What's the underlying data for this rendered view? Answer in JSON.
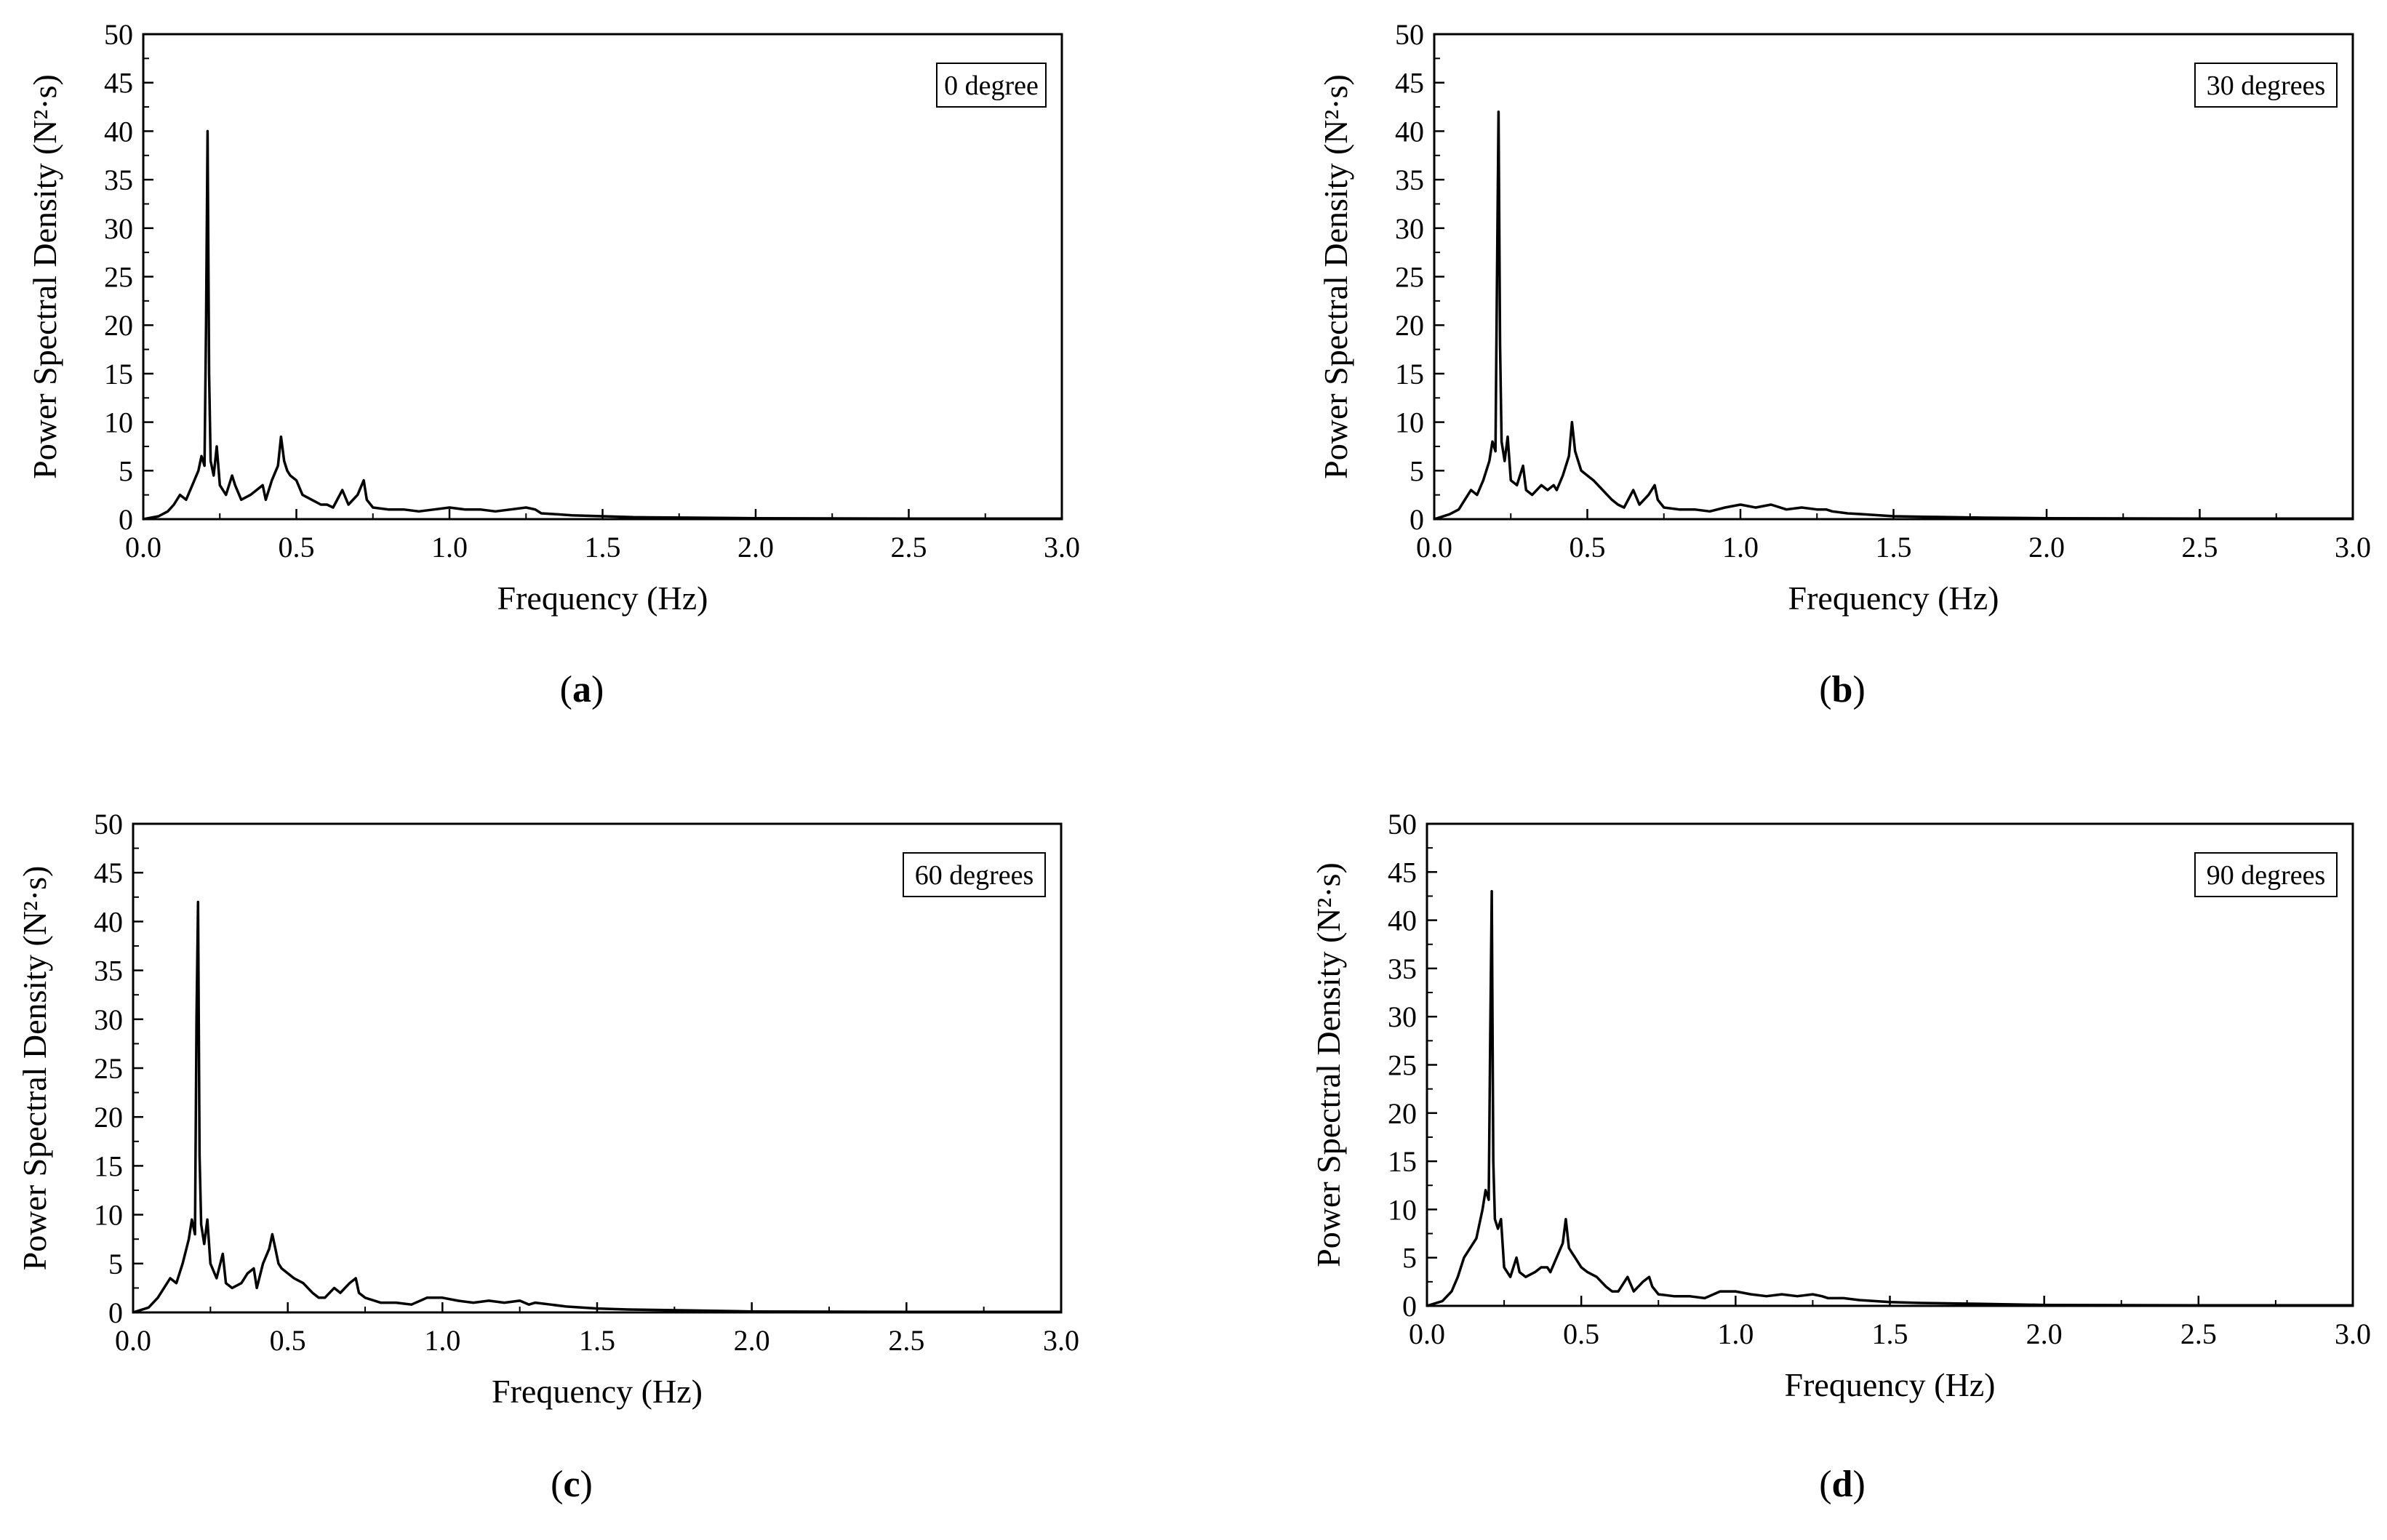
{
  "chart_data": [
    {
      "type": "line",
      "panel_label": "a",
      "legend": "0 degree",
      "xlabel": "Frequency (Hz)",
      "ylabel": "Power Spectral Density (N²·s)",
      "xlim": [
        0,
        3.0
      ],
      "ylim": [
        0,
        50
      ],
      "xticks": [
        "0.0",
        "0.5",
        "1.0",
        "1.5",
        "2.0",
        "2.5",
        "3.0"
      ],
      "yticks": [
        "0",
        "5",
        "10",
        "15",
        "20",
        "25",
        "30",
        "35",
        "40",
        "45",
        "50"
      ],
      "series": [
        {
          "x": [
            0,
            0.05,
            0.08,
            0.1,
            0.12,
            0.14,
            0.16,
            0.18,
            0.19,
            0.2,
            0.205,
            0.21,
            0.215,
            0.22,
            0.23,
            0.24,
            0.25,
            0.27,
            0.29,
            0.3,
            0.32,
            0.35,
            0.37,
            0.39,
            0.4,
            0.42,
            0.44,
            0.45,
            0.46,
            0.47,
            0.48,
            0.5,
            0.52,
            0.55,
            0.58,
            0.6,
            0.62,
            0.65,
            0.67,
            0.7,
            0.72,
            0.73,
            0.75,
            0.8,
            0.85,
            0.9,
            0.95,
            1.0,
            1.05,
            1.1,
            1.15,
            1.2,
            1.25,
            1.28,
            1.3,
            1.35,
            1.4,
            1.5,
            1.6,
            1.8,
            2.0,
            2.5,
            3.0
          ],
          "y": [
            0,
            0.3,
            0.8,
            1.5,
            2.5,
            2.0,
            3.5,
            5.0,
            6.5,
            5.5,
            20,
            40,
            15,
            6,
            4.5,
            7.5,
            3.5,
            2.5,
            4.5,
            3.5,
            2.0,
            2.5,
            3.0,
            3.5,
            2.0,
            4.0,
            5.5,
            8.5,
            6.0,
            5.0,
            4.5,
            4.0,
            2.5,
            2.0,
            1.5,
            1.5,
            1.2,
            3.0,
            1.5,
            2.5,
            4.0,
            2.0,
            1.2,
            1.0,
            1.0,
            0.8,
            1.0,
            1.2,
            1.0,
            1.0,
            0.8,
            1.0,
            1.2,
            1.0,
            0.6,
            0.5,
            0.4,
            0.3,
            0.2,
            0.15,
            0.1,
            0.05,
            0.05
          ]
        }
      ]
    },
    {
      "type": "line",
      "panel_label": "b",
      "legend": "30 degrees",
      "xlabel": "Frequency (Hz)",
      "ylabel": "Power Spectral Density (N²·s)",
      "xlim": [
        0,
        3.0
      ],
      "ylim": [
        0,
        50
      ],
      "xticks": [
        "0.0",
        "0.5",
        "1.0",
        "1.5",
        "2.0",
        "2.5",
        "3.0"
      ],
      "yticks": [
        "0",
        "5",
        "10",
        "15",
        "20",
        "25",
        "30",
        "35",
        "40",
        "45",
        "50"
      ],
      "series": [
        {
          "x": [
            0,
            0.05,
            0.08,
            0.1,
            0.12,
            0.14,
            0.16,
            0.18,
            0.19,
            0.2,
            0.205,
            0.21,
            0.215,
            0.22,
            0.23,
            0.24,
            0.25,
            0.27,
            0.29,
            0.3,
            0.32,
            0.35,
            0.37,
            0.39,
            0.4,
            0.42,
            0.44,
            0.45,
            0.46,
            0.47,
            0.48,
            0.5,
            0.52,
            0.55,
            0.58,
            0.6,
            0.62,
            0.65,
            0.67,
            0.7,
            0.72,
            0.73,
            0.75,
            0.8,
            0.85,
            0.9,
            0.95,
            1.0,
            1.05,
            1.1,
            1.15,
            1.2,
            1.25,
            1.28,
            1.3,
            1.35,
            1.4,
            1.5,
            1.6,
            1.8,
            2.0,
            2.5,
            3.0
          ],
          "y": [
            0,
            0.5,
            1.0,
            2.0,
            3.0,
            2.5,
            4.0,
            6.0,
            8.0,
            7.0,
            25,
            42,
            18,
            8,
            6.0,
            8.5,
            4.0,
            3.5,
            5.5,
            3.0,
            2.5,
            3.5,
            3.0,
            3.5,
            3.0,
            4.5,
            6.5,
            10.0,
            7.0,
            6.0,
            5.0,
            4.5,
            4.0,
            3.0,
            2.0,
            1.5,
            1.2,
            3.0,
            1.5,
            2.5,
            3.5,
            2.0,
            1.2,
            1.0,
            1.0,
            0.8,
            1.2,
            1.5,
            1.2,
            1.5,
            1.0,
            1.2,
            1.0,
            1.0,
            0.8,
            0.6,
            0.5,
            0.3,
            0.25,
            0.15,
            0.1,
            0.05,
            0.05
          ]
        }
      ]
    },
    {
      "type": "line",
      "panel_label": "c",
      "legend": "60 degrees",
      "xlabel": "Frequency (Hz)",
      "ylabel": "Power Spectral Density (N²·s)",
      "xlim": [
        0,
        3.0
      ],
      "ylim": [
        0,
        50
      ],
      "xticks": [
        "0.0",
        "0.5",
        "1.0",
        "1.5",
        "2.0",
        "2.5",
        "3.0"
      ],
      "yticks": [
        "0",
        "5",
        "10",
        "15",
        "20",
        "25",
        "30",
        "35",
        "40",
        "45",
        "50"
      ],
      "series": [
        {
          "x": [
            0,
            0.05,
            0.08,
            0.1,
            0.12,
            0.14,
            0.16,
            0.18,
            0.19,
            0.2,
            0.205,
            0.21,
            0.215,
            0.22,
            0.23,
            0.24,
            0.25,
            0.27,
            0.29,
            0.3,
            0.32,
            0.35,
            0.37,
            0.39,
            0.4,
            0.42,
            0.44,
            0.45,
            0.46,
            0.47,
            0.48,
            0.5,
            0.52,
            0.55,
            0.58,
            0.6,
            0.62,
            0.65,
            0.67,
            0.7,
            0.72,
            0.73,
            0.75,
            0.8,
            0.85,
            0.9,
            0.95,
            1.0,
            1.05,
            1.1,
            1.15,
            1.2,
            1.25,
            1.28,
            1.3,
            1.35,
            1.4,
            1.5,
            1.6,
            1.8,
            2.0,
            2.5,
            3.0
          ],
          "y": [
            0,
            0.5,
            1.5,
            2.5,
            3.5,
            3.0,
            5.0,
            7.5,
            9.5,
            8.0,
            30,
            42,
            16,
            9,
            7.0,
            9.5,
            5.0,
            3.5,
            6.0,
            3.0,
            2.5,
            3.0,
            4.0,
            4.5,
            2.5,
            5.0,
            6.5,
            8.0,
            6.5,
            5.0,
            4.5,
            4.0,
            3.5,
            3.0,
            2.0,
            1.5,
            1.5,
            2.5,
            2.0,
            3.0,
            3.5,
            2.0,
            1.5,
            1.0,
            1.0,
            0.8,
            1.5,
            1.5,
            1.2,
            1.0,
            1.2,
            1.0,
            1.2,
            0.8,
            1.0,
            0.8,
            0.6,
            0.4,
            0.3,
            0.2,
            0.1,
            0.05,
            0.05
          ]
        }
      ]
    },
    {
      "type": "line",
      "panel_label": "d",
      "legend": "90 degrees",
      "xlabel": "Frequency (Hz)",
      "ylabel": "Power Spectral Density (N²·s)",
      "xlim": [
        0,
        3.0
      ],
      "ylim": [
        0,
        50
      ],
      "xticks": [
        "0.0",
        "0.5",
        "1.0",
        "1.5",
        "2.0",
        "2.5",
        "3.0"
      ],
      "yticks": [
        "0",
        "5",
        "10",
        "15",
        "20",
        "25",
        "30",
        "35",
        "40",
        "45",
        "50"
      ],
      "series": [
        {
          "x": [
            0,
            0.05,
            0.08,
            0.1,
            0.12,
            0.14,
            0.16,
            0.18,
            0.19,
            0.2,
            0.205,
            0.21,
            0.215,
            0.22,
            0.23,
            0.24,
            0.25,
            0.27,
            0.29,
            0.3,
            0.32,
            0.35,
            0.37,
            0.39,
            0.4,
            0.42,
            0.44,
            0.45,
            0.46,
            0.47,
            0.48,
            0.5,
            0.52,
            0.55,
            0.58,
            0.6,
            0.62,
            0.65,
            0.67,
            0.7,
            0.72,
            0.73,
            0.75,
            0.8,
            0.85,
            0.9,
            0.95,
            1.0,
            1.05,
            1.1,
            1.15,
            1.2,
            1.25,
            1.28,
            1.3,
            1.35,
            1.4,
            1.5,
            1.6,
            1.8,
            2.0,
            2.5,
            3.0
          ],
          "y": [
            0,
            0.5,
            1.5,
            3.0,
            5.0,
            6.0,
            7.0,
            10.0,
            12.0,
            11.0,
            28,
            43,
            15,
            9,
            8.0,
            9.0,
            4.0,
            3.0,
            5.0,
            3.5,
            3.0,
            3.5,
            4.0,
            4.0,
            3.5,
            5.0,
            6.5,
            9.0,
            6.0,
            5.5,
            5.0,
            4.0,
            3.5,
            3.0,
            2.0,
            1.5,
            1.5,
            3.0,
            1.5,
            2.5,
            3.0,
            2.0,
            1.2,
            1.0,
            1.0,
            0.8,
            1.5,
            1.5,
            1.2,
            1.0,
            1.2,
            1.0,
            1.2,
            1.0,
            0.8,
            0.8,
            0.6,
            0.4,
            0.3,
            0.2,
            0.1,
            0.05,
            0.05
          ]
        }
      ]
    }
  ]
}
